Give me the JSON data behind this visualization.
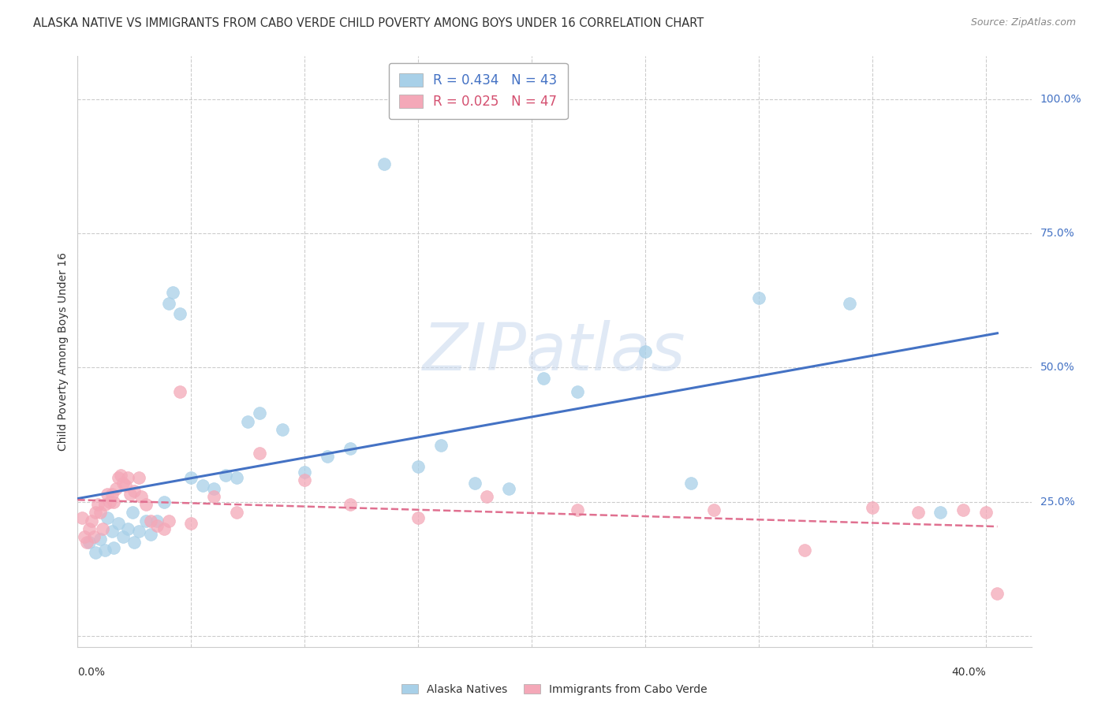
{
  "title": "ALASKA NATIVE VS IMMIGRANTS FROM CABO VERDE CHILD POVERTY AMONG BOYS UNDER 16 CORRELATION CHART",
  "source": "Source: ZipAtlas.com",
  "ylabel": "Child Poverty Among Boys Under 16",
  "xlim": [
    0.0,
    0.42
  ],
  "ylim": [
    -0.02,
    1.08
  ],
  "ytick_positions": [
    0.0,
    0.25,
    0.5,
    0.75,
    1.0
  ],
  "ytick_labels": [
    "",
    "25.0%",
    "50.0%",
    "75.0%",
    "100.0%"
  ],
  "xtick_positions": [
    0.0,
    0.05,
    0.1,
    0.15,
    0.2,
    0.25,
    0.3,
    0.35,
    0.4
  ],
  "watermark": "ZIPatlas",
  "series1_label": "Alaska Natives",
  "series2_label": "Immigrants from Cabo Verde",
  "series1_color": "#a8d0e8",
  "series2_color": "#f4a8b8",
  "line1_color": "#4472c4",
  "line2_color": "#e07090",
  "background_color": "#ffffff",
  "grid_color": "#cccccc",
  "alaska_x": [
    0.005,
    0.008,
    0.01,
    0.012,
    0.013,
    0.015,
    0.016,
    0.018,
    0.02,
    0.022,
    0.024,
    0.025,
    0.027,
    0.03,
    0.032,
    0.035,
    0.038,
    0.04,
    0.042,
    0.045,
    0.05,
    0.055,
    0.06,
    0.065,
    0.07,
    0.075,
    0.08,
    0.09,
    0.1,
    0.11,
    0.12,
    0.135,
    0.15,
    0.16,
    0.175,
    0.19,
    0.205,
    0.22,
    0.25,
    0.27,
    0.3,
    0.34,
    0.38
  ],
  "alaska_y": [
    0.175,
    0.155,
    0.18,
    0.16,
    0.22,
    0.195,
    0.165,
    0.21,
    0.185,
    0.2,
    0.23,
    0.175,
    0.195,
    0.215,
    0.19,
    0.215,
    0.25,
    0.62,
    0.64,
    0.6,
    0.295,
    0.28,
    0.275,
    0.3,
    0.295,
    0.4,
    0.415,
    0.385,
    0.305,
    0.335,
    0.35,
    0.88,
    0.315,
    0.355,
    0.285,
    0.275,
    0.48,
    0.455,
    0.53,
    0.285,
    0.63,
    0.62,
    0.23
  ],
  "caboverde_x": [
    0.002,
    0.003,
    0.004,
    0.005,
    0.006,
    0.007,
    0.008,
    0.009,
    0.01,
    0.011,
    0.012,
    0.013,
    0.014,
    0.015,
    0.016,
    0.017,
    0.018,
    0.019,
    0.02,
    0.021,
    0.022,
    0.023,
    0.025,
    0.027,
    0.028,
    0.03,
    0.032,
    0.035,
    0.038,
    0.04,
    0.045,
    0.05,
    0.06,
    0.07,
    0.08,
    0.1,
    0.12,
    0.15,
    0.18,
    0.22,
    0.28,
    0.32,
    0.35,
    0.37,
    0.39,
    0.4,
    0.405
  ],
  "caboverde_y": [
    0.22,
    0.185,
    0.175,
    0.2,
    0.215,
    0.185,
    0.23,
    0.245,
    0.23,
    0.2,
    0.245,
    0.265,
    0.25,
    0.265,
    0.25,
    0.275,
    0.295,
    0.3,
    0.285,
    0.28,
    0.295,
    0.265,
    0.27,
    0.295,
    0.26,
    0.245,
    0.215,
    0.205,
    0.2,
    0.215,
    0.455,
    0.21,
    0.26,
    0.23,
    0.34,
    0.29,
    0.245,
    0.22,
    0.26,
    0.235,
    0.235,
    0.16,
    0.24,
    0.23,
    0.235,
    0.23,
    0.08
  ],
  "title_fontsize": 10.5,
  "source_fontsize": 9,
  "axis_label_fontsize": 10,
  "tick_fontsize": 10,
  "legend_fontsize": 12,
  "watermark_fontsize": 60
}
